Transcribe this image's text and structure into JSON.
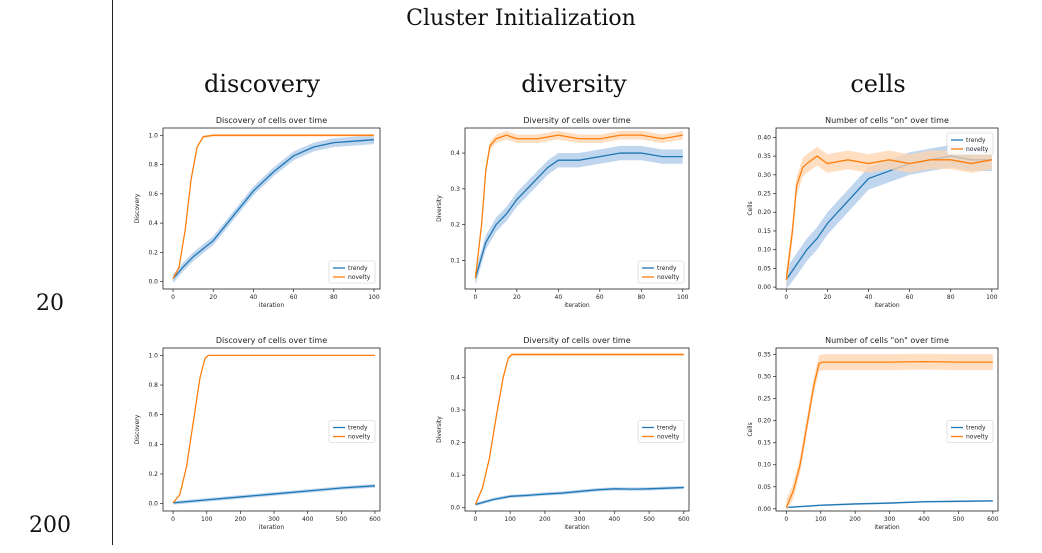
{
  "page": {
    "title": "Cluster Initialization",
    "columns": [
      "discovery",
      "diversity",
      "cells"
    ],
    "rows": [
      "20",
      "200"
    ]
  },
  "colors": {
    "trendy": "#1f77b4",
    "novelty": "#ff7f0e",
    "trendy_band": "#a9c8e8",
    "novelty_band": "#ffd3ad"
  },
  "chart_data": [
    {
      "type": "line",
      "title": "Discovery of cells over time",
      "xlabel": "iteration",
      "ylabel": "Discovery",
      "xlim": [
        -5,
        103
      ],
      "ylim": [
        -0.05,
        1.05
      ],
      "xticks": [
        0,
        20,
        40,
        60,
        80,
        100
      ],
      "yticks": [
        0.0,
        0.2,
        0.4,
        0.6,
        0.8,
        1.0
      ],
      "ytick_labels": [
        "0.0",
        "0.2",
        "0.4",
        "0.6",
        "0.8",
        "1.0"
      ],
      "legend": "lower-right",
      "series": [
        {
          "name": "trendy",
          "x": [
            0,
            5,
            10,
            20,
            30,
            40,
            50,
            60,
            70,
            80,
            90,
            100
          ],
          "values": [
            0.02,
            0.1,
            0.17,
            0.28,
            0.45,
            0.62,
            0.75,
            0.86,
            0.92,
            0.95,
            0.96,
            0.97
          ],
          "band": 0.03
        },
        {
          "name": "novelty",
          "x": [
            0,
            3,
            6,
            9,
            12,
            15,
            20,
            30,
            50,
            100
          ],
          "values": [
            0.02,
            0.1,
            0.35,
            0.7,
            0.92,
            0.99,
            1.0,
            1.0,
            1.0,
            1.0
          ],
          "band": 0.008
        }
      ]
    },
    {
      "type": "line",
      "title": "Diversity of cells over time",
      "xlabel": "iteration",
      "ylabel": "Diversity",
      "xlim": [
        -5,
        103
      ],
      "ylim": [
        0.02,
        0.47
      ],
      "xticks": [
        0,
        20,
        40,
        60,
        80,
        100
      ],
      "yticks": [
        0.1,
        0.2,
        0.3,
        0.4
      ],
      "ytick_labels": [
        "0.1",
        "0.2",
        "0.3",
        "0.4"
      ],
      "legend": "lower-right",
      "series": [
        {
          "name": "trendy",
          "x": [
            0,
            5,
            10,
            15,
            20,
            25,
            30,
            35,
            40,
            50,
            60,
            70,
            80,
            90,
            100
          ],
          "values": [
            0.05,
            0.15,
            0.2,
            0.23,
            0.27,
            0.3,
            0.33,
            0.36,
            0.38,
            0.38,
            0.39,
            0.4,
            0.4,
            0.39,
            0.39
          ],
          "band": 0.02
        },
        {
          "name": "novelty",
          "x": [
            0,
            3,
            5,
            7,
            10,
            15,
            20,
            30,
            40,
            50,
            60,
            70,
            80,
            90,
            100
          ],
          "values": [
            0.05,
            0.2,
            0.35,
            0.42,
            0.44,
            0.45,
            0.44,
            0.44,
            0.45,
            0.44,
            0.44,
            0.45,
            0.45,
            0.44,
            0.45
          ],
          "band": 0.012
        }
      ]
    },
    {
      "type": "line",
      "title": "Number of cells \"on\" over time",
      "xlabel": "iteration",
      "ylabel": "Cells",
      "xlim": [
        -5,
        103
      ],
      "ylim": [
        -0.005,
        0.425
      ],
      "xticks": [
        0,
        20,
        40,
        60,
        80,
        100
      ],
      "yticks": [
        0.0,
        0.05,
        0.1,
        0.15,
        0.2,
        0.25,
        0.3,
        0.35,
        0.4
      ],
      "ytick_labels": [
        "0.00",
        "0.05",
        "0.10",
        "0.15",
        "0.20",
        "0.25",
        "0.30",
        "0.35",
        "0.40"
      ],
      "legend": "top-right",
      "series": [
        {
          "name": "trendy",
          "x": [
            0,
            5,
            10,
            15,
            20,
            25,
            30,
            35,
            40,
            50,
            60,
            70,
            80,
            90,
            100
          ],
          "values": [
            0.02,
            0.06,
            0.1,
            0.13,
            0.17,
            0.2,
            0.23,
            0.26,
            0.29,
            0.31,
            0.33,
            0.34,
            0.35,
            0.34,
            0.34
          ],
          "band": 0.03
        },
        {
          "name": "novelty",
          "x": [
            0,
            3,
            5,
            8,
            10,
            15,
            20,
            30,
            40,
            50,
            60,
            70,
            80,
            90,
            100
          ],
          "values": [
            0.02,
            0.15,
            0.27,
            0.32,
            0.33,
            0.35,
            0.33,
            0.34,
            0.33,
            0.34,
            0.33,
            0.34,
            0.34,
            0.33,
            0.34
          ],
          "band": 0.025
        }
      ]
    },
    {
      "type": "line",
      "title": "Discovery of cells over time",
      "xlabel": "iteration",
      "ylabel": "Discovery",
      "xlim": [
        -30,
        615
      ],
      "ylim": [
        -0.05,
        1.05
      ],
      "xticks": [
        0,
        100,
        200,
        300,
        400,
        500,
        600
      ],
      "yticks": [
        0.0,
        0.2,
        0.4,
        0.6,
        0.8,
        1.0
      ],
      "ytick_labels": [
        "0.0",
        "0.2",
        "0.4",
        "0.6",
        "0.8",
        "1.0"
      ],
      "legend": "center-right",
      "series": [
        {
          "name": "trendy",
          "x": [
            0,
            100,
            200,
            300,
            400,
            500,
            600
          ],
          "values": [
            0.005,
            0.025,
            0.045,
            0.065,
            0.085,
            0.105,
            0.12
          ],
          "band": 0.012
        },
        {
          "name": "novelty",
          "x": [
            0,
            20,
            40,
            60,
            80,
            95,
            105,
            150,
            300,
            600
          ],
          "values": [
            0.005,
            0.06,
            0.25,
            0.55,
            0.85,
            0.98,
            1.0,
            1.0,
            1.0,
            1.0
          ],
          "band": 0.004
        }
      ]
    },
    {
      "type": "line",
      "title": "Diversity of cells over time",
      "xlabel": "iteration",
      "ylabel": "Diversity",
      "xlim": [
        -30,
        615
      ],
      "ylim": [
        -0.01,
        0.49
      ],
      "xticks": [
        0,
        100,
        200,
        300,
        400,
        500,
        600
      ],
      "yticks": [
        0.0,
        0.1,
        0.2,
        0.3,
        0.4
      ],
      "ytick_labels": [
        "0.0",
        "0.1",
        "0.2",
        "0.3",
        "0.4"
      ],
      "legend": "center-right",
      "series": [
        {
          "name": "trendy",
          "x": [
            0,
            50,
            100,
            150,
            200,
            250,
            300,
            350,
            400,
            450,
            500,
            550,
            600
          ],
          "values": [
            0.01,
            0.025,
            0.035,
            0.038,
            0.042,
            0.045,
            0.05,
            0.055,
            0.058,
            0.057,
            0.058,
            0.06,
            0.062
          ],
          "band": 0.005
        },
        {
          "name": "novelty",
          "x": [
            0,
            20,
            40,
            60,
            80,
            95,
            105,
            200,
            300,
            400,
            500,
            600
          ],
          "values": [
            0.01,
            0.06,
            0.15,
            0.28,
            0.4,
            0.46,
            0.47,
            0.47,
            0.47,
            0.47,
            0.47,
            0.47
          ],
          "band": 0.005
        }
      ]
    },
    {
      "type": "line",
      "title": "Number of cells \"on\" over time",
      "xlabel": "iteration",
      "ylabel": "Cells",
      "xlim": [
        -30,
        615
      ],
      "ylim": [
        -0.005,
        0.365
      ],
      "xticks": [
        0,
        100,
        200,
        300,
        400,
        500,
        600
      ],
      "yticks": [
        0.0,
        0.05,
        0.1,
        0.15,
        0.2,
        0.25,
        0.3,
        0.35
      ],
      "ytick_labels": [
        "0.00",
        "0.05",
        "0.10",
        "0.15",
        "0.20",
        "0.25",
        "0.30",
        "0.35"
      ],
      "legend": "center-right",
      "series": [
        {
          "name": "trendy",
          "x": [
            0,
            100,
            200,
            300,
            400,
            500,
            600
          ],
          "values": [
            0.003,
            0.008,
            0.011,
            0.013,
            0.016,
            0.017,
            0.018
          ],
          "band": 0.002
        },
        {
          "name": "novelty",
          "x": [
            0,
            20,
            40,
            60,
            80,
            95,
            105,
            200,
            300,
            400,
            500,
            600
          ],
          "values": [
            0.003,
            0.04,
            0.1,
            0.19,
            0.28,
            0.33,
            0.333,
            0.333,
            0.333,
            0.334,
            0.333,
            0.333
          ],
          "band": 0.018
        }
      ]
    }
  ]
}
